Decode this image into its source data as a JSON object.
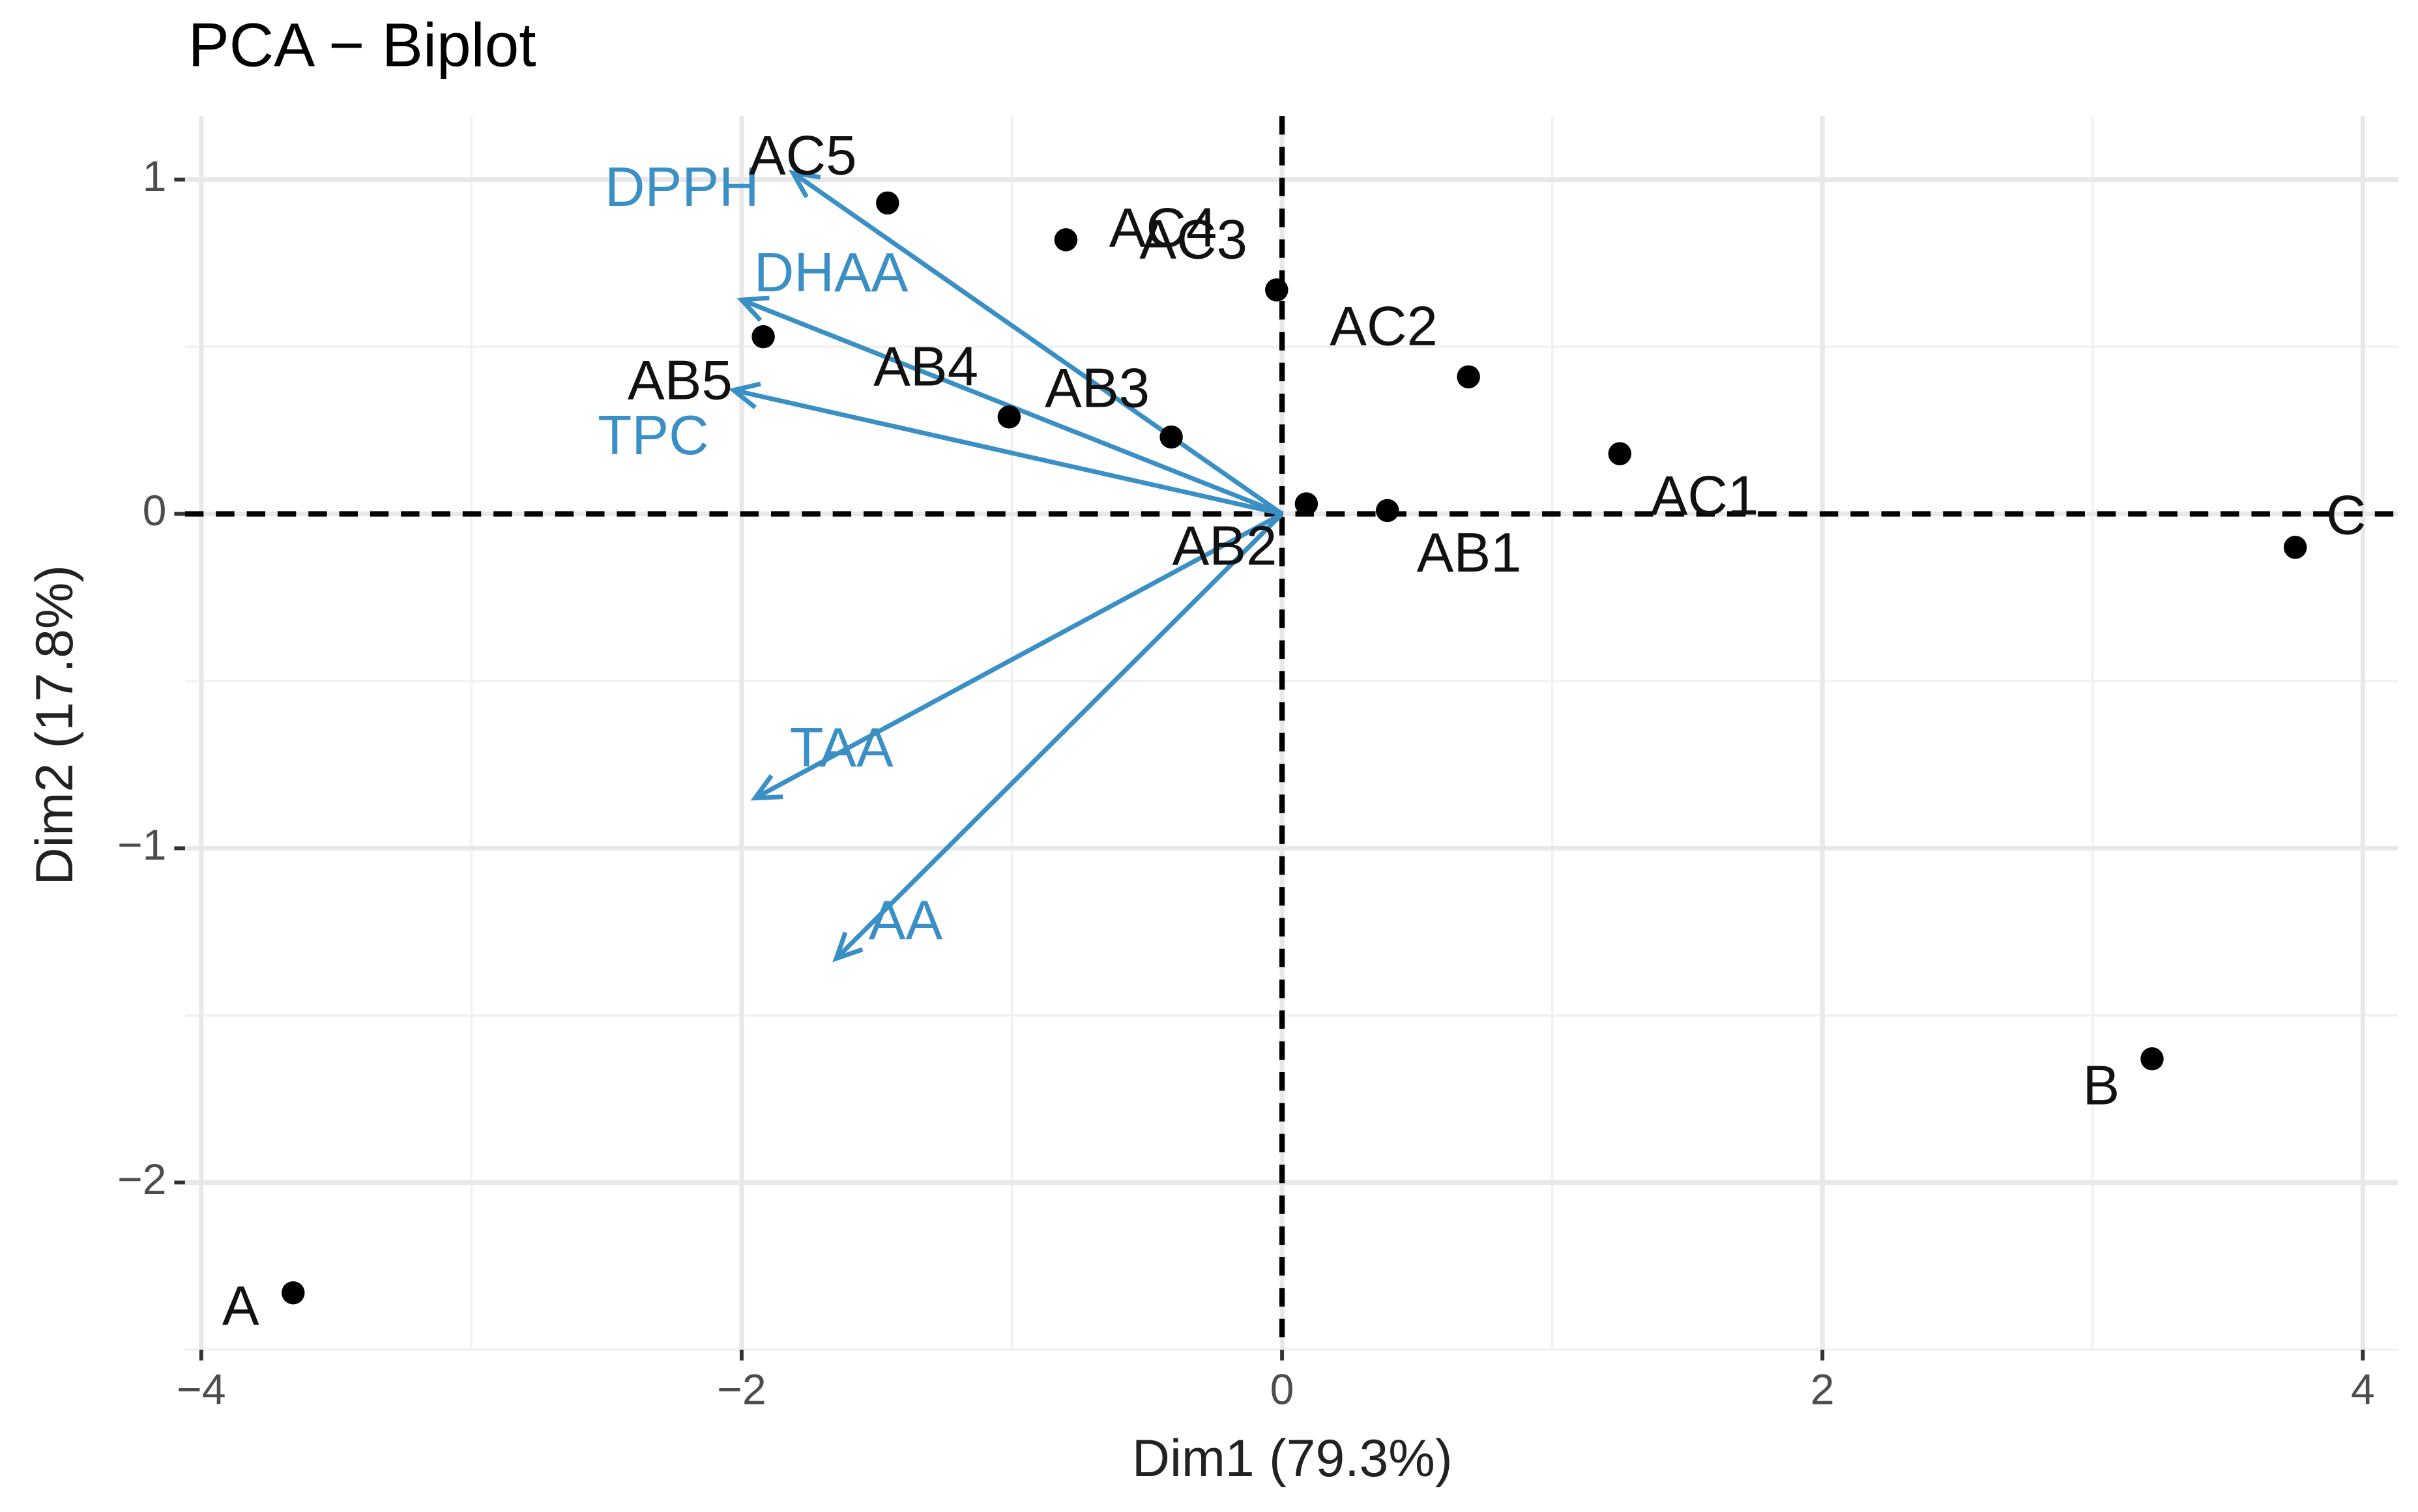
{
  "chart_data": {
    "type": "biplot",
    "title": "PCA − Biplot",
    "xlabel": "Dim1 (79.3%)",
    "ylabel": "Dim2 (17.8%)",
    "labels": [
      "A",
      "B",
      "C",
      "AC1",
      "AC2",
      "AC3",
      "AC4",
      "AC5",
      "AB1",
      "AB2",
      "AB3",
      "AB4",
      "AB5"
    ],
    "x": [
      -3.66,
      3.22,
      3.75,
      1.25,
      0.69,
      -0.02,
      -0.8,
      -1.46,
      0.39,
      0.09,
      -0.41,
      -1.01,
      -1.92
    ],
    "values": [
      -2.33,
      -1.63,
      -0.1,
      0.18,
      0.41,
      0.67,
      0.82,
      0.93,
      0.01,
      0.03,
      0.23,
      0.29,
      0.53
    ],
    "color": "#000000",
    "variables": {
      "labels": [
        "DPPH",
        "DHAA",
        "TPC",
        "TAA",
        "AA"
      ],
      "x": [
        -1.81,
        -2.0,
        -2.03,
        -1.95,
        -1.65
      ],
      "values": [
        1.02,
        0.64,
        0.37,
        -0.85,
        -1.33
      ],
      "color": "#3a8fc5"
    },
    "xlim": [
      -4.06,
      4.13
    ],
    "ylim": [
      -2.5,
      1.19
    ],
    "xticks": [
      {
        "value": -4,
        "label": "−4"
      },
      {
        "value": -2,
        "label": "−2"
      },
      0,
      2,
      4
    ],
    "yticks": [
      1,
      0,
      {
        "value": -1,
        "label": "−1"
      },
      {
        "value": -2,
        "label": "−2"
      }
    ],
    "x_minor_grid": [
      -3,
      -1,
      1,
      3
    ],
    "y_minor_grid": [
      0.5,
      -0.5,
      -1.5,
      -2.5
    ],
    "reference_lines": {
      "x": 0,
      "y": 0
    },
    "grid": true
  }
}
